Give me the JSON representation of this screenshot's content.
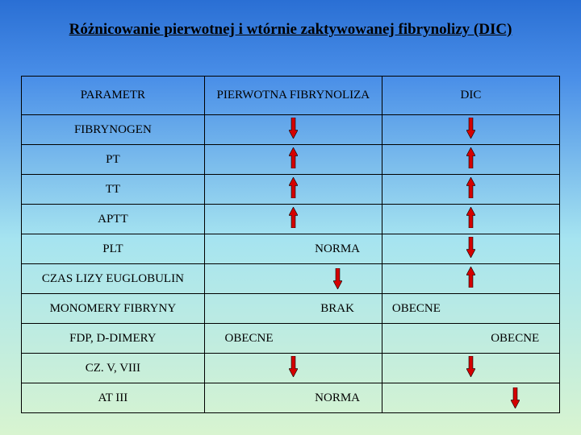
{
  "title": "Różnicowanie pierwotnej i wtórnie zaktywowanej fibrynolizy (DIC)",
  "headers": {
    "param": "PARAMETR",
    "primary": "PIERWOTNA FIBRYNOLIZA",
    "dic": "DIC"
  },
  "rows": [
    {
      "param": "FIBRYNOGEN",
      "prim": {
        "arrow": "down"
      },
      "dic": {
        "arrow": "down"
      }
    },
    {
      "param": "PT",
      "prim": {
        "arrow": "up"
      },
      "dic": {
        "arrow": "up"
      }
    },
    {
      "param": "TT",
      "prim": {
        "arrow": "up"
      },
      "dic": {
        "arrow": "up"
      }
    },
    {
      "param": "APTT",
      "prim": {
        "arrow": "up"
      },
      "dic": {
        "arrow": "up"
      }
    },
    {
      "param": "PLT",
      "prim": {
        "text": "NORMA",
        "pos": "right"
      },
      "dic": {
        "arrow": "down"
      }
    },
    {
      "param": "CZAS LIZY EUGLOBULIN",
      "prim": {
        "arrow": "down",
        "pos": "right"
      },
      "dic": {
        "arrow": "up"
      }
    },
    {
      "param": "MONOMERY  FIBRYNY",
      "prim": {
        "text": "BRAK",
        "pos": "right"
      },
      "dic": {
        "text": "OBECNE",
        "pos": "textleft"
      }
    },
    {
      "param": "FDP, D-DIMERY",
      "prim": {
        "text": "OBECNE",
        "pos": "left"
      },
      "dic": {
        "text": "OBECNE",
        "pos": "right"
      }
    },
    {
      "param": "CZ. V, VIII",
      "prim": {
        "arrow": "down"
      },
      "dic": {
        "arrow": "down"
      }
    },
    {
      "param": "AT III",
      "prim": {
        "text": "NORMA",
        "pos": "right"
      },
      "dic": {
        "arrow": "down",
        "pos": "right"
      }
    }
  ],
  "arrow_style": {
    "fill": "#d40000",
    "stroke": "#000000",
    "stroke_width": 0.6,
    "width": 11,
    "height": 26
  }
}
